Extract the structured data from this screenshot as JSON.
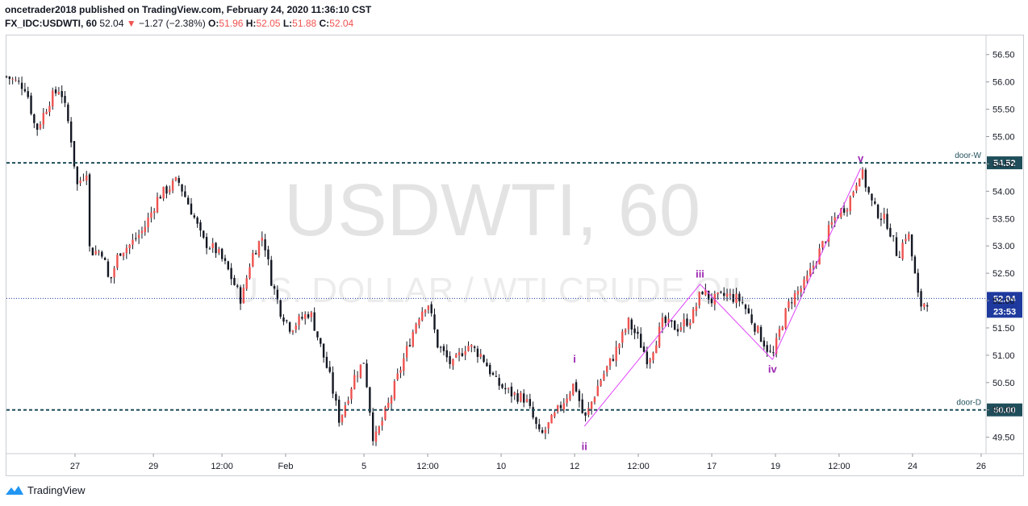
{
  "header": {
    "publisher_line": "oncetrader2018 published on TradingView.com, February 24, 2020 11:36:10 CST",
    "symbol": "FX_IDC:USDWTI, 60",
    "last": "52.04",
    "change": "−1.27 (−2.38%)",
    "o_label": "O:",
    "o_val": "51.96",
    "h_label": "H:",
    "h_val": "52.05",
    "l_label": "L:",
    "l_val": "51.88",
    "c_label": "C:",
    "c_val": "52.04"
  },
  "watermark": {
    "main": "USDWTI, 60",
    "sub": "U.S. DOLLAR / WTI CRUDE OIL"
  },
  "footer": {
    "brand": "TradingView",
    "icon": "tradingview-logo-icon"
  },
  "colors": {
    "up": "#ef5350",
    "down": "#131722",
    "wave": "#e040fb",
    "level": "#1f4e5a",
    "last": "#1e3a9e"
  },
  "chart_data": {
    "type": "candlestick",
    "ylim": [
      49.2,
      56.85
    ],
    "y_ticks": [
      "56.50",
      "56.00",
      "55.50",
      "55.00",
      "54.50",
      "54.00",
      "53.50",
      "53.00",
      "52.50",
      "52.00",
      "51.50",
      "51.00",
      "50.50",
      "50.00",
      "49.50"
    ],
    "x_ticks": [
      {
        "label": "27",
        "pos": 0.07
      },
      {
        "label": "29",
        "pos": 0.15
      },
      {
        "label": "12:00",
        "pos": 0.22
      },
      {
        "label": "Feb",
        "pos": 0.285
      },
      {
        "label": "5",
        "pos": 0.365
      },
      {
        "label": "12:00",
        "pos": 0.43
      },
      {
        "label": "10",
        "pos": 0.505
      },
      {
        "label": "12",
        "pos": 0.58
      },
      {
        "label": "12:00",
        "pos": 0.645
      },
      {
        "label": "17",
        "pos": 0.72
      },
      {
        "label": "19",
        "pos": 0.785
      },
      {
        "label": "12:00",
        "pos": 0.85
      },
      {
        "label": "24",
        "pos": 0.925
      },
      {
        "label": "26",
        "pos": 0.995
      }
    ],
    "levels": [
      {
        "name": "door-W",
        "value": 54.52,
        "label": "54.52"
      },
      {
        "name": "door-D",
        "value": 50.0,
        "label": "50.00"
      }
    ],
    "last_price": {
      "value": 52.04,
      "label": "52.04",
      "countdown": "23:53"
    },
    "wave_points": [
      {
        "t": 0.59,
        "p": 49.7,
        "label": ""
      },
      {
        "t": 0.708,
        "p": 52.3,
        "label": "iii"
      },
      {
        "t": 0.782,
        "p": 50.92,
        "label": "iv"
      },
      {
        "t": 0.872,
        "p": 54.42,
        "label": "v"
      }
    ],
    "wave_labels": [
      {
        "label": "i",
        "t": 0.58,
        "p": 50.75,
        "anchor": "above"
      },
      {
        "label": "ii",
        "t": 0.59,
        "p": 49.5,
        "anchor": "below"
      },
      {
        "label": "iii",
        "t": 0.708,
        "p": 52.3,
        "anchor": "above"
      },
      {
        "label": "iv",
        "t": 0.782,
        "p": 50.92,
        "anchor": "below"
      },
      {
        "label": "v",
        "t": 0.872,
        "p": 54.42,
        "anchor": "above"
      }
    ],
    "path": [
      [
        0.0,
        56.1
      ],
      [
        0.02,
        55.9
      ],
      [
        0.03,
        55.1
      ],
      [
        0.045,
        55.7
      ],
      [
        0.055,
        55.9
      ],
      [
        0.065,
        55.1
      ],
      [
        0.072,
        54.1
      ],
      [
        0.082,
        54.4
      ],
      [
        0.085,
        52.9
      ],
      [
        0.098,
        52.9
      ],
      [
        0.105,
        52.3
      ],
      [
        0.115,
        52.9
      ],
      [
        0.125,
        53.0
      ],
      [
        0.14,
        53.3
      ],
      [
        0.155,
        53.9
      ],
      [
        0.175,
        54.2
      ],
      [
        0.19,
        53.6
      ],
      [
        0.2,
        53.1
      ],
      [
        0.215,
        52.9
      ],
      [
        0.225,
        52.6
      ],
      [
        0.24,
        52.0
      ],
      [
        0.25,
        52.8
      ],
      [
        0.262,
        53.2
      ],
      [
        0.27,
        52.4
      ],
      [
        0.28,
        51.8
      ],
      [
        0.29,
        51.5
      ],
      [
        0.31,
        51.8
      ],
      [
        0.33,
        50.6
      ],
      [
        0.34,
        49.8
      ],
      [
        0.355,
        50.6
      ],
      [
        0.365,
        50.9
      ],
      [
        0.375,
        49.4
      ],
      [
        0.39,
        50.1
      ],
      [
        0.405,
        50.9
      ],
      [
        0.42,
        51.7
      ],
      [
        0.43,
        52.0
      ],
      [
        0.44,
        51.2
      ],
      [
        0.455,
        50.8
      ],
      [
        0.47,
        51.2
      ],
      [
        0.485,
        51.0
      ],
      [
        0.5,
        50.5
      ],
      [
        0.515,
        50.3
      ],
      [
        0.53,
        50.2
      ],
      [
        0.545,
        49.5
      ],
      [
        0.56,
        49.9
      ],
      [
        0.58,
        50.5
      ],
      [
        0.59,
        49.8
      ],
      [
        0.605,
        50.5
      ],
      [
        0.62,
        51.0
      ],
      [
        0.635,
        51.6
      ],
      [
        0.645,
        51.3
      ],
      [
        0.655,
        50.9
      ],
      [
        0.67,
        51.6
      ],
      [
        0.685,
        51.5
      ],
      [
        0.7,
        51.7
      ],
      [
        0.71,
        52.2
      ],
      [
        0.72,
        52.0
      ],
      [
        0.735,
        52.1
      ],
      [
        0.75,
        52.0
      ],
      [
        0.765,
        51.5
      ],
      [
        0.782,
        50.95
      ],
      [
        0.79,
        51.5
      ],
      [
        0.8,
        52.0
      ],
      [
        0.815,
        52.3
      ],
      [
        0.83,
        52.9
      ],
      [
        0.845,
        53.5
      ],
      [
        0.86,
        53.8
      ],
      [
        0.872,
        54.4
      ],
      [
        0.885,
        53.7
      ],
      [
        0.9,
        53.4
      ],
      [
        0.91,
        52.8
      ],
      [
        0.92,
        53.3
      ],
      [
        0.927,
        52.5
      ],
      [
        0.932,
        51.9
      ],
      [
        0.94,
        52.0
      ]
    ]
  }
}
